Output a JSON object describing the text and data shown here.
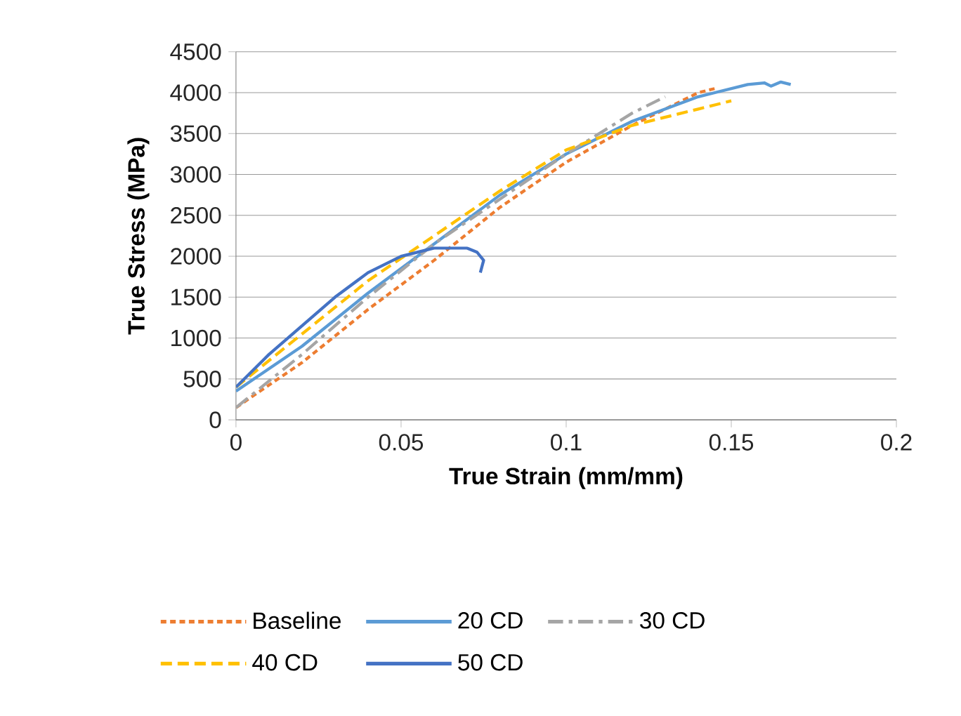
{
  "chart_data": {
    "type": "line",
    "xlabel": "True Strain (mm/mm)",
    "ylabel": "True Stress (MPa)",
    "xlim": [
      0,
      0.2
    ],
    "xticks": [
      0,
      0.05,
      0.1,
      0.15,
      0.2
    ],
    "ylim": [
      0,
      4500
    ],
    "yticks": [
      0,
      500,
      1000,
      1500,
      2000,
      2500,
      3000,
      3500,
      4000,
      4500
    ],
    "grid": "y",
    "legend": "bottom",
    "series": [
      {
        "name": "Baseline",
        "color": "#ed7d31",
        "line_style": "dashed",
        "x": [
          0,
          0.02,
          0.04,
          0.06,
          0.08,
          0.1,
          0.12,
          0.14,
          0.145
        ],
        "values": [
          150,
          700,
          1350,
          1950,
          2600,
          3150,
          3600,
          4000,
          4050
        ]
      },
      {
        "name": "20 CD",
        "color": "#5b9bd5",
        "line_style": "solid",
        "x": [
          0,
          0.02,
          0.04,
          0.06,
          0.08,
          0.1,
          0.12,
          0.14,
          0.155,
          0.16,
          0.162,
          0.165,
          0.168
        ],
        "values": [
          350,
          900,
          1550,
          2150,
          2750,
          3250,
          3650,
          3950,
          4100,
          4120,
          4080,
          4130,
          4100
        ]
      },
      {
        "name": "30 CD",
        "color": "#a5a5a5",
        "line_style": "dashdot",
        "x": [
          0,
          0.02,
          0.04,
          0.06,
          0.08,
          0.1,
          0.12,
          0.13
        ],
        "values": [
          150,
          800,
          1500,
          2150,
          2700,
          3250,
          3750,
          3950
        ]
      },
      {
        "name": "40 CD",
        "color": "#ffc000",
        "line_style": "longdash",
        "x": [
          0,
          0.02,
          0.04,
          0.06,
          0.08,
          0.1,
          0.12,
          0.14,
          0.15
        ],
        "values": [
          400,
          1050,
          1700,
          2250,
          2800,
          3300,
          3600,
          3800,
          3900
        ]
      },
      {
        "name": "50 CD",
        "color": "#4472c4",
        "line_style": "solid",
        "x": [
          0,
          0.01,
          0.02,
          0.03,
          0.04,
          0.05,
          0.06,
          0.07,
          0.073,
          0.075,
          0.074
        ],
        "values": [
          400,
          800,
          1150,
          1500,
          1800,
          2000,
          2100,
          2100,
          2050,
          1950,
          1800
        ]
      }
    ]
  }
}
